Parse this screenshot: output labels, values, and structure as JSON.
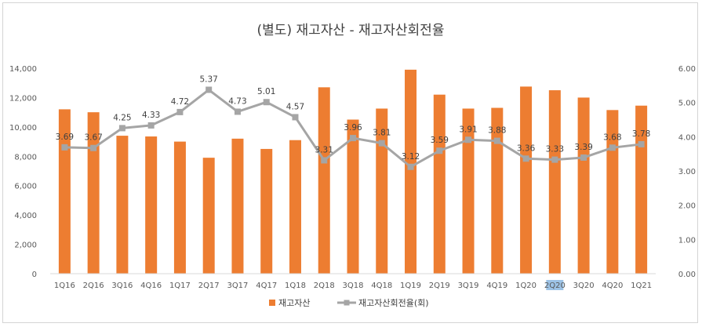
{
  "chart_data": {
    "type": "bar+line",
    "title": "(별도) 재고자산 - 재고자산회전율",
    "categories": [
      "1Q16",
      "2Q16",
      "3Q16",
      "4Q16",
      "1Q17",
      "2Q17",
      "3Q17",
      "4Q17",
      "1Q18",
      "2Q18",
      "3Q18",
      "4Q18",
      "1Q19",
      "2Q19",
      "3Q19",
      "4Q19",
      "1Q20",
      "2Q20",
      "3Q20",
      "4Q20",
      "1Q21"
    ],
    "series": [
      {
        "name": "재고자산",
        "type": "bar",
        "axis": "left",
        "color": "#ED7D31",
        "values": [
          11200,
          11000,
          9400,
          9350,
          9000,
          7900,
          9200,
          8500,
          9100,
          12700,
          10500,
          11250,
          13900,
          12200,
          11250,
          11300,
          12750,
          12500,
          12000,
          11150,
          11450
        ]
      },
      {
        "name": "재고자산회전율(회)",
        "type": "line",
        "axis": "right",
        "color": "#A5A5A5",
        "values": [
          3.69,
          3.67,
          4.25,
          4.33,
          4.72,
          5.37,
          4.73,
          5.01,
          4.57,
          3.31,
          3.96,
          3.81,
          3.12,
          3.59,
          3.91,
          3.88,
          3.36,
          3.33,
          3.39,
          3.68,
          3.78
        ],
        "labels": [
          "3.69",
          "3.67",
          "4.25",
          "4.33",
          "4.72",
          "5.37",
          "4.73",
          "5.01",
          "4.57",
          "3.31",
          "3.96",
          "3.81",
          "3.12",
          "3.59",
          "3.91",
          "3.88",
          "3.36",
          "3.33",
          "3.39",
          "3.68",
          "3.78"
        ]
      }
    ],
    "y_left": {
      "range": [
        0,
        14000
      ],
      "step": 2000,
      "ticks": [
        "0",
        "2,000",
        "4,000",
        "6,000",
        "8,000",
        "10,000",
        "12,000",
        "14,000"
      ]
    },
    "y_right": {
      "range": [
        0,
        6
      ],
      "step": 1,
      "ticks": [
        "0.00",
        "1.00",
        "2.00",
        "3.00",
        "4.00",
        "5.00",
        "6.00"
      ]
    },
    "highlighted_category": "2Q20",
    "highlight_color": "#9DC3E6",
    "grid": false,
    "legend": {
      "position": "bottom",
      "items": [
        "재고자산",
        "재고자산회전율(회)"
      ]
    }
  }
}
